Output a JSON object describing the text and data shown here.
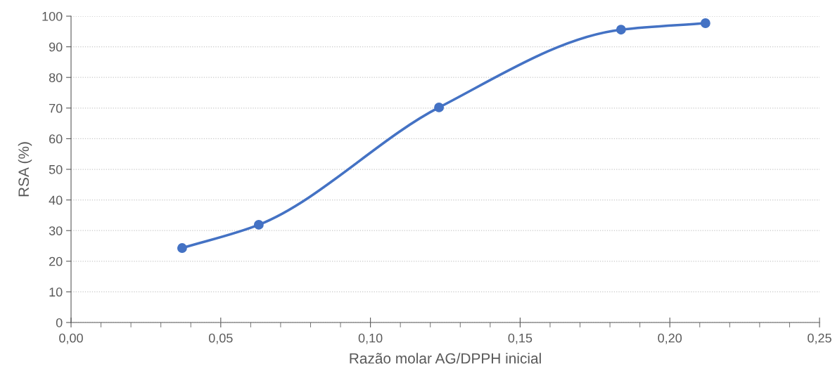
{
  "chart_data": {
    "type": "line",
    "xlabel": "Razão molar AG/DPPH inicial",
    "ylabel": "RSA (%)",
    "series": [
      {
        "color": "#4472c4",
        "x": [
          0.0371,
          0.0627,
          0.1229,
          0.1837,
          0.2119
        ],
        "values": [
          24.3,
          31.9,
          70.2,
          95.6,
          97.7
        ]
      }
    ],
    "xlim": [
      0,
      0.25
    ],
    "ylim": [
      0,
      100
    ],
    "xticks": [
      {
        "value": 0,
        "label": "0,00"
      },
      {
        "value": 0.01,
        "label": null
      },
      {
        "value": 0.02,
        "label": null
      },
      {
        "value": 0.03,
        "label": null
      },
      {
        "value": 0.04,
        "label": null
      },
      {
        "value": 0.05,
        "label": "0,05"
      },
      {
        "value": 0.06,
        "label": null
      },
      {
        "value": 0.07,
        "label": null
      },
      {
        "value": 0.08,
        "label": null
      },
      {
        "value": 0.09,
        "label": null
      },
      {
        "value": 0.1,
        "label": "0,10"
      },
      {
        "value": 0.11,
        "label": null
      },
      {
        "value": 0.12,
        "label": null
      },
      {
        "value": 0.13,
        "label": null
      },
      {
        "value": 0.14,
        "label": null
      },
      {
        "value": 0.15,
        "label": "0,15"
      },
      {
        "value": 0.16,
        "label": null
      },
      {
        "value": 0.17,
        "label": null
      },
      {
        "value": 0.18,
        "label": null
      },
      {
        "value": 0.19,
        "label": null
      },
      {
        "value": 0.2,
        "label": "0,20"
      },
      {
        "value": 0.21,
        "label": null
      },
      {
        "value": 0.22,
        "label": null
      },
      {
        "value": 0.23,
        "label": null
      },
      {
        "value": 0.24,
        "label": null
      },
      {
        "value": 0.25,
        "label": "0,25"
      }
    ],
    "yticks": [
      0,
      10,
      20,
      30,
      40,
      50,
      60,
      70,
      80,
      90,
      100
    ],
    "grid": "y",
    "marker": "circle",
    "line_style": "solid",
    "legend": false
  }
}
